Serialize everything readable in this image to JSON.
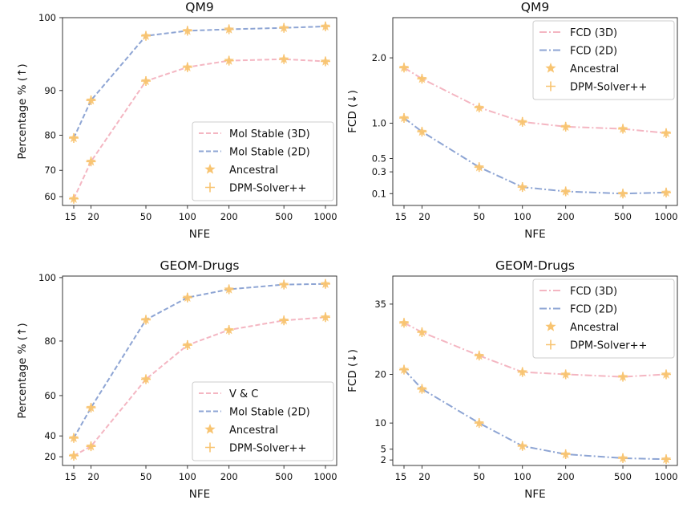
{
  "figure": {
    "background": "#ffffff"
  },
  "chart_data": [
    {
      "id": "qm9-stability",
      "type": "line",
      "title": "QM9",
      "xlabel": "NFE",
      "ylabel": "Percentage % (↑)",
      "x_scale": "log",
      "x_ticks": [
        15,
        20,
        50,
        100,
        200,
        500,
        1000
      ],
      "y_scale": "nonlinear",
      "y_ticks": [
        60,
        70,
        80,
        90,
        100
      ],
      "ylim": [
        58,
        100.4
      ],
      "y_axis_breakpoints": [
        [
          58,
          0
        ],
        [
          60,
          0.047
        ],
        [
          70,
          0.187
        ],
        [
          80,
          0.374
        ],
        [
          90,
          0.612
        ],
        [
          100,
          1.0
        ]
      ],
      "legend_position": "lower right",
      "series": [
        {
          "name": "Mol Stable (3D)",
          "style": "dashed",
          "color": "#f4b6c2",
          "x": [
            15,
            20,
            50,
            100,
            200,
            500,
            1000
          ],
          "y": [
            59.5,
            72.5,
            91.3,
            93.2,
            94.1,
            94.3,
            94.0
          ]
        },
        {
          "name": "Mol Stable (2D)",
          "style": "dashed",
          "color": "#8ea5d4",
          "x": [
            15,
            20,
            50,
            100,
            200,
            500,
            1000
          ],
          "y": [
            79.2,
            87.8,
            97.5,
            98.2,
            98.4,
            98.6,
            98.8
          ]
        }
      ],
      "markers": [
        {
          "name": "Ancestral",
          "shape": "star",
          "color": "#f8c471"
        },
        {
          "name": "DPM-Solver++",
          "shape": "plus",
          "color": "#f8c471"
        }
      ]
    },
    {
      "id": "qm9-fcd",
      "type": "line",
      "title": "QM9",
      "xlabel": "NFE",
      "ylabel": "FCD (↓)",
      "x_scale": "log",
      "x_ticks": [
        15,
        20,
        50,
        100,
        200,
        500,
        1000
      ],
      "y_scale": "nonlinear",
      "y_ticks": [
        0.1,
        0.3,
        0.5,
        1.0,
        2.0
      ],
      "ylim": [
        0.03,
        2.7
      ],
      "y_axis_breakpoints": [
        [
          0.03,
          0
        ],
        [
          0.1,
          0.063
        ],
        [
          0.3,
          0.179
        ],
        [
          0.5,
          0.25
        ],
        [
          1.0,
          0.438
        ],
        [
          2.0,
          0.786
        ],
        [
          2.7,
          1.0
        ]
      ],
      "legend_position": "upper right",
      "series": [
        {
          "name": "FCD (3D)",
          "style": "dashdot",
          "color": "#f4b6c2",
          "x": [
            15,
            20,
            50,
            100,
            200,
            500,
            1000
          ],
          "y": [
            1.85,
            1.68,
            1.24,
            1.02,
            0.95,
            0.92,
            0.86
          ]
        },
        {
          "name": "FCD (2D)",
          "style": "dashdot",
          "color": "#8ea5d4",
          "x": [
            15,
            20,
            50,
            100,
            200,
            500,
            1000
          ],
          "y": [
            1.08,
            0.88,
            0.37,
            0.16,
            0.12,
            0.1,
            0.11
          ]
        }
      ],
      "markers": [
        {
          "name": "Ancestral",
          "shape": "star",
          "color": "#f8c471"
        },
        {
          "name": "DPM-Solver++",
          "shape": "plus",
          "color": "#f8c471"
        }
      ]
    },
    {
      "id": "geom-stability",
      "type": "line",
      "title": "GEOM-Drugs",
      "xlabel": "NFE",
      "ylabel": "Percentage % (↑)",
      "x_scale": "log",
      "x_ticks": [
        15,
        20,
        50,
        100,
        200,
        500,
        1000
      ],
      "y_scale": "nonlinear",
      "y_ticks": [
        20,
        40,
        60,
        80,
        100
      ],
      "ylim": [
        17,
        101.5
      ],
      "y_axis_breakpoints": [
        [
          17,
          0
        ],
        [
          20,
          0.046
        ],
        [
          40,
          0.156
        ],
        [
          60,
          0.369
        ],
        [
          80,
          0.657
        ],
        [
          100,
          0.992
        ],
        [
          101.5,
          1.0
        ]
      ],
      "legend_position": "lower right",
      "series": [
        {
          "name": "V & C",
          "style": "dashed",
          "color": "#f4b6c2",
          "x": [
            15,
            20,
            50,
            100,
            200,
            500,
            1000
          ],
          "y": [
            21,
            30,
            66,
            78.5,
            83.5,
            86.5,
            87.5
          ]
        },
        {
          "name": "Mol Stable (2D)",
          "style": "dashed",
          "color": "#8ea5d4",
          "x": [
            15,
            20,
            50,
            100,
            200,
            500,
            1000
          ],
          "y": [
            38,
            54,
            86.7,
            93.7,
            96.3,
            97.8,
            98
          ]
        }
      ],
      "markers": [
        {
          "name": "Ancestral",
          "shape": "star",
          "color": "#f8c471"
        },
        {
          "name": "DPM-Solver++",
          "shape": "plus",
          "color": "#f8c471"
        }
      ]
    },
    {
      "id": "geom-fcd",
      "type": "line",
      "title": "GEOM-Drugs",
      "xlabel": "NFE",
      "ylabel": "FCD (↓)",
      "x_scale": "log",
      "x_ticks": [
        15,
        20,
        50,
        100,
        200,
        500,
        1000
      ],
      "y_scale": "nonlinear",
      "y_ticks": [
        2,
        5,
        10,
        20,
        35
      ],
      "ylim": [
        0,
        44
      ],
      "y_axis_breakpoints": [
        [
          0,
          0
        ],
        [
          2,
          0.029
        ],
        [
          5,
          0.086
        ],
        [
          10,
          0.224
        ],
        [
          20,
          0.481
        ],
        [
          35,
          0.852
        ],
        [
          44,
          1.0
        ]
      ],
      "legend_position": "upper right",
      "series": [
        {
          "name": "FCD (3D)",
          "style": "dashdot",
          "color": "#f4b6c2",
          "x": [
            15,
            20,
            50,
            100,
            200,
            500,
            1000
          ],
          "y": [
            31,
            29,
            24,
            20.5,
            20,
            19.5,
            20
          ]
        },
        {
          "name": "FCD (2D)",
          "style": "dashdot",
          "color": "#8ea5d4",
          "x": [
            15,
            20,
            50,
            100,
            200,
            500,
            1000
          ],
          "y": [
            21,
            17,
            10,
            5.6,
            3.6,
            2.5,
            2.2
          ]
        }
      ],
      "markers": [
        {
          "name": "Ancestral",
          "shape": "star",
          "color": "#f8c471"
        },
        {
          "name": "DPM-Solver++",
          "shape": "plus",
          "color": "#f8c471"
        }
      ]
    }
  ]
}
